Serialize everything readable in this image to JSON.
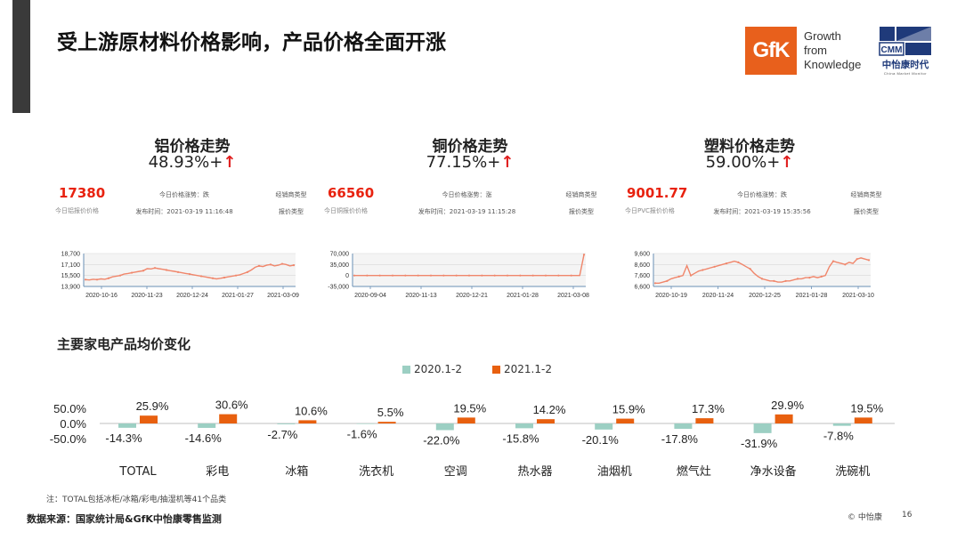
{
  "slide": {
    "title": "受上游原材料价格影响，产品价格全面开涨",
    "note": "注：TOTAL包括冰柜/冰箱/彩电/抽湿机等41个品类",
    "source": "数据来源：国家统计局&GfK中怡康零售监测",
    "copyright": "© 中怡康",
    "page_number": "16"
  },
  "logos": {
    "gfk_text": "GfK",
    "gfk_tagline": [
      "Growth",
      "from",
      "Knowledge"
    ],
    "cmm_text": "CMM",
    "cmm_name": "中怡康时代",
    "cmm_subtitle": "China Market Monitor"
  },
  "colors": {
    "series_2020": "#9ccfc3",
    "series_2021": "#e8600f",
    "price_red": "#e8220f",
    "mini_line": "#f0866b",
    "gfk_orange": "#e8601c",
    "cmm_navy": "#1f3a7a"
  },
  "materials": [
    {
      "title": "铝价格走势",
      "change": "48.93%+",
      "arrow": "↑",
      "price": "17380",
      "price_label": "今日铝报价价格",
      "trend_label": "今日价格涨势：跌",
      "time_label": "发布时间：2021-03-19 11:16:48",
      "dealer_label": "经销商类型",
      "quote_label": "报价类型"
    },
    {
      "title": "铜价格走势",
      "change": "77.15%+",
      "arrow": "↑",
      "price": "66560",
      "price_label": "今日铜报价价格",
      "trend_label": "今日价格涨势：涨",
      "time_label": "发布时间：2021-03-19 11:15:28",
      "dealer_label": "经销商类型",
      "quote_label": "报价类型"
    },
    {
      "title": "塑料价格走势",
      "change": "59.00%+",
      "arrow": "↑",
      "price": "9001.77",
      "price_label": "今日PVC报价价格",
      "trend_label": "今日价格涨势：跌",
      "time_label": "发布时间：2021-03-19 15:35:56",
      "dealer_label": "经销商类型",
      "quote_label": "报价类型"
    }
  ],
  "chart_data": [
    {
      "type": "line",
      "name": "aluminum",
      "y_ticks": [
        "18,700",
        "17,100",
        "15,500",
        "13,900"
      ],
      "y_tick_values": [
        18700,
        17100,
        15500,
        13900
      ],
      "x_ticks": [
        "2020-10-16",
        "2020-11-23",
        "2020-12-24",
        "2021-01-27",
        "2021-03-09"
      ],
      "ylim": [
        13900,
        18700
      ],
      "values": [
        14900,
        14850,
        14950,
        14900,
        15000,
        14950,
        15100,
        15300,
        15400,
        15500,
        15700,
        15800,
        15900,
        16000,
        16100,
        16200,
        16500,
        16450,
        16600,
        16500,
        16400,
        16300,
        16200,
        16100,
        16000,
        15900,
        15800,
        15700,
        15600,
        15500,
        15400,
        15300,
        15200,
        15100,
        15000,
        15100,
        15200,
        15300,
        15400,
        15500,
        15600,
        15800,
        16000,
        16300,
        16700,
        16900,
        16800,
        17000,
        17100,
        16900,
        17000,
        17200,
        17100,
        16900,
        17000
      ]
    },
    {
      "type": "line",
      "name": "copper",
      "y_ticks": [
        "70,000",
        "35,000",
        "0",
        "-35,000"
      ],
      "y_tick_values": [
        70000,
        35000,
        0,
        -35000
      ],
      "x_ticks": [
        "2020-09-04",
        "2020-11-13",
        "2020-12-21",
        "2021-01-28",
        "2021-03-08"
      ],
      "ylim": [
        -35000,
        70000
      ],
      "values": [
        0,
        0,
        0,
        0,
        0,
        0,
        0,
        0,
        0,
        0,
        0,
        0,
        0,
        0,
        0,
        0,
        0,
        0,
        0,
        0,
        0,
        0,
        0,
        0,
        0,
        0,
        0,
        0,
        0,
        0,
        0,
        0,
        0,
        0,
        0,
        0,
        0,
        0,
        0,
        0,
        0,
        0,
        0,
        0,
        0,
        0,
        0,
        0,
        0,
        0,
        0,
        0,
        0,
        0,
        66560
      ]
    },
    {
      "type": "line",
      "name": "plastic",
      "y_ticks": [
        "9,600",
        "8,600",
        "7,600",
        "6,600"
      ],
      "y_tick_values": [
        9600,
        8600,
        7600,
        6600
      ],
      "x_ticks": [
        "2020-10-19",
        "2020-11-24",
        "2020-12-25",
        "2021-01-28",
        "2021-03-10"
      ],
      "ylim": [
        6600,
        9600
      ],
      "values": [
        6900,
        6900,
        7000,
        7100,
        7300,
        7400,
        7500,
        7600,
        8500,
        7600,
        7800,
        8000,
        8100,
        8200,
        8300,
        8400,
        8500,
        8600,
        8700,
        8800,
        8900,
        8800,
        8600,
        8400,
        8200,
        7800,
        7500,
        7300,
        7200,
        7100,
        7100,
        7000,
        7000,
        7100,
        7100,
        7200,
        7300,
        7300,
        7400,
        7400,
        7500,
        7400,
        7500,
        7600,
        8400,
        8900,
        8800,
        8700,
        8600,
        8800,
        8700,
        9100,
        9200,
        9100,
        9000
      ]
    },
    {
      "type": "bar",
      "name": "appliance_avg_price_change",
      "title": "主要家电产品均价变化",
      "categories": [
        "TOTAL",
        "彩电",
        "冰箱",
        "洗衣机",
        "空调",
        "热水器",
        "油烟机",
        "燃气灶",
        "净水设备",
        "洗碗机"
      ],
      "series": [
        {
          "name": "2020.1-2",
          "values": [
            -14.3,
            -14.6,
            -2.7,
            -1.6,
            -22.0,
            -15.8,
            -20.1,
            -17.8,
            -31.9,
            -7.8
          ]
        },
        {
          "name": "2021.1-2",
          "values": [
            25.9,
            30.6,
            10.6,
            5.5,
            19.5,
            14.2,
            15.9,
            17.3,
            29.9,
            19.5
          ]
        }
      ],
      "y_ticks": [
        "50.0%",
        "0.0%",
        "-50.0%"
      ],
      "y_tick_values": [
        50,
        0,
        -50
      ],
      "ylim": [
        -50,
        50
      ],
      "label_suffix": "%",
      "legend": "top-center"
    }
  ]
}
